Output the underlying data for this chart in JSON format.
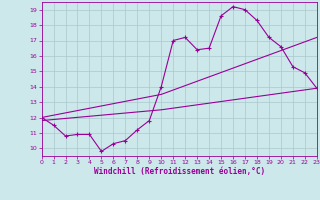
{
  "xlabel": "Windchill (Refroidissement éolien,°C)",
  "bg_color": "#cce8ea",
  "line_color": "#990099",
  "grid_color": "#aac8cc",
  "xlim": [
    0,
    23
  ],
  "ylim": [
    9.5,
    19.5
  ],
  "xticks": [
    0,
    1,
    2,
    3,
    4,
    5,
    6,
    7,
    8,
    9,
    10,
    11,
    12,
    13,
    14,
    15,
    16,
    17,
    18,
    19,
    20,
    21,
    22,
    23
  ],
  "yticks": [
    10,
    11,
    12,
    13,
    14,
    15,
    16,
    17,
    18,
    19
  ],
  "line1_x": [
    0,
    1,
    2,
    3,
    4,
    5,
    6,
    7,
    8,
    9,
    10,
    11,
    12,
    13,
    14,
    15,
    16,
    17,
    18,
    19,
    20,
    21,
    22,
    23
  ],
  "line1_y": [
    12.0,
    11.5,
    10.8,
    10.9,
    10.9,
    9.8,
    10.3,
    10.5,
    11.2,
    11.8,
    14.0,
    17.0,
    17.2,
    16.4,
    16.5,
    18.6,
    19.2,
    19.0,
    18.3,
    17.2,
    16.6,
    15.3,
    14.9,
    13.9
  ],
  "line2_x": [
    0,
    10,
    23
  ],
  "line2_y": [
    12.0,
    13.5,
    17.2
  ],
  "line3_x": [
    0,
    10,
    23
  ],
  "line3_y": [
    11.8,
    12.5,
    13.9
  ]
}
